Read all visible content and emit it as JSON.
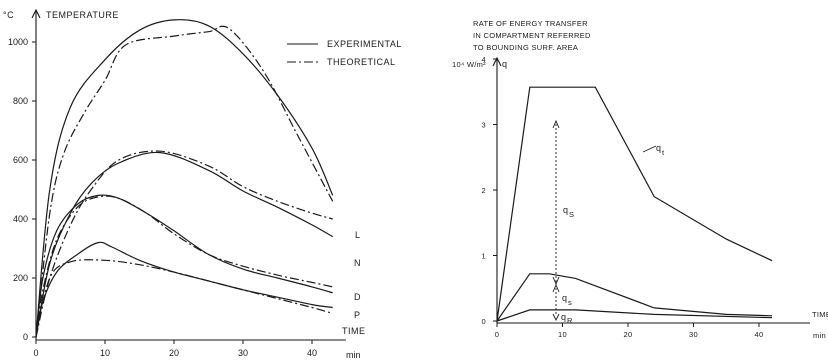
{
  "chart_data": [
    {
      "type": "line",
      "title": "TEMPERATURE",
      "y_unit": "°C",
      "xlabel": "min",
      "xlim": [
        0,
        44
      ],
      "ylim": [
        0,
        1100
      ],
      "x_ticks": [
        "0",
        "10",
        "20",
        "30",
        "40"
      ],
      "y_ticks": [
        "0",
        "200",
        "400",
        "600",
        "800",
        "1000"
      ],
      "legend": {
        "position": "top-right",
        "entries": [
          {
            "label": "EXPERIMENTAL",
            "style": "solid"
          },
          {
            "label": "THEORETICAL",
            "style": "dash-dot"
          }
        ]
      },
      "time_label": "TIME",
      "series": [
        {
          "name": "L",
          "kind": "experimental",
          "x": [
            0,
            2,
            5,
            10,
            15,
            20,
            25,
            30,
            35,
            40,
            43
          ],
          "y": [
            0,
            500,
            780,
            940,
            1040,
            1075,
            1055,
            960,
            820,
            640,
            480
          ]
        },
        {
          "name": "L",
          "kind": "theoretical",
          "x": [
            0,
            2,
            4,
            7,
            10,
            13,
            20,
            25,
            28,
            33,
            38,
            43
          ],
          "y": [
            0,
            420,
            620,
            760,
            870,
            990,
            1020,
            1035,
            1045,
            900,
            680,
            460
          ]
        },
        {
          "name": "N",
          "kind": "experimental",
          "x": [
            0,
            2,
            5,
            8,
            12,
            18,
            25,
            30,
            35,
            40,
            43
          ],
          "y": [
            0,
            250,
            420,
            520,
            590,
            625,
            565,
            495,
            440,
            380,
            340
          ]
        },
        {
          "name": "N",
          "kind": "theoretical",
          "x": [
            0,
            2,
            5,
            8,
            12,
            18,
            25,
            30,
            35,
            40,
            43
          ],
          "y": [
            0,
            200,
            380,
            500,
            600,
            630,
            580,
            510,
            460,
            420,
            400
          ]
        },
        {
          "name": "D",
          "kind": "experimental",
          "x": [
            0,
            1,
            3,
            6,
            9,
            12,
            16,
            20,
            25,
            30,
            35,
            40,
            43
          ],
          "y": [
            0,
            200,
            360,
            450,
            480,
            470,
            420,
            360,
            280,
            230,
            200,
            170,
            150
          ]
        },
        {
          "name": "D",
          "kind": "theoretical",
          "x": [
            0,
            1,
            3,
            6,
            9,
            12,
            16,
            20,
            25,
            30,
            35,
            40,
            43
          ],
          "y": [
            0,
            160,
            330,
            440,
            475,
            470,
            420,
            350,
            280,
            240,
            210,
            185,
            170
          ]
        },
        {
          "name": "P",
          "kind": "experimental",
          "x": [
            0,
            1,
            3,
            6,
            9,
            11,
            15,
            20,
            25,
            30,
            35,
            40,
            43
          ],
          "y": [
            0,
            120,
            220,
            280,
            320,
            305,
            260,
            220,
            190,
            160,
            135,
            110,
            100
          ]
        },
        {
          "name": "P",
          "kind": "theoretical",
          "x": [
            0,
            2,
            5,
            10,
            15,
            20,
            25,
            30,
            35,
            40,
            43
          ],
          "y": [
            0,
            200,
            255,
            260,
            245,
            220,
            190,
            160,
            130,
            100,
            80
          ]
        }
      ]
    },
    {
      "type": "line",
      "title_lines": [
        "RATE OF ENERGY TRANSFER",
        "IN COMPARTMENT REFERRED",
        "TO BOUNDING SURF. AREA"
      ],
      "y_unit": "10⁴ W/m²",
      "ylabel": "q",
      "xlabel": "min",
      "time_label": "TIME",
      "xlim": [
        0,
        44
      ],
      "ylim": [
        0,
        4.4
      ],
      "x_ticks": [
        "0",
        "10",
        "20",
        "30",
        "40"
      ],
      "y_ticks": [
        "0",
        "1",
        "2",
        "3",
        "4"
      ],
      "series": [
        {
          "name": "qt",
          "x": [
            0,
            5,
            15,
            24,
            35,
            42
          ],
          "y": [
            0,
            3.57,
            3.57,
            1.9,
            1.25,
            0.92
          ]
        },
        {
          "name": "qs",
          "x": [
            0,
            5,
            8,
            12,
            24,
            35,
            42
          ],
          "y": [
            0,
            0.72,
            0.72,
            0.65,
            0.2,
            0.1,
            0.08
          ]
        },
        {
          "name": "qR",
          "x": [
            0,
            5,
            12,
            24,
            42
          ],
          "y": [
            0,
            0.17,
            0.17,
            0.1,
            0.05
          ]
        }
      ],
      "annotations": [
        {
          "text": "q",
          "sub": "t"
        },
        {
          "text": "q",
          "sub": "S"
        },
        {
          "text": "q",
          "sub": "s"
        },
        {
          "text": "q",
          "sub": "R"
        }
      ]
    }
  ]
}
